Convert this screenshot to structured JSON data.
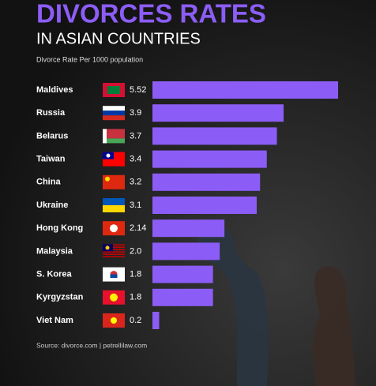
{
  "chart_data": {
    "type": "bar",
    "orientation": "horizontal",
    "title": "DIVORCES RATES",
    "subtitle": "IN ASIAN COUNTRIES",
    "axis_label": "Divorce Rate Per 1000 population",
    "categories": [
      "Maldives",
      "Russia",
      "Belarus",
      "Taiwan",
      "China",
      "Ukraine",
      "Hong Kong",
      "Malaysia",
      "S. Korea",
      "Kyrgyzstan",
      "Viet Nam"
    ],
    "values": [
      5.52,
      3.9,
      3.7,
      3.4,
      3.2,
      3.1,
      2.14,
      2.0,
      1.8,
      1.8,
      0.2
    ],
    "value_labels": [
      "5.52",
      "3.9",
      "3.7",
      "3.4",
      "3.2",
      "3.1",
      "2.14",
      "2.0",
      "1.8",
      "1.8",
      "0.2"
    ],
    "color": "#8c5df6",
    "source": "Source: divorce.com | petrellilaw.com"
  }
}
